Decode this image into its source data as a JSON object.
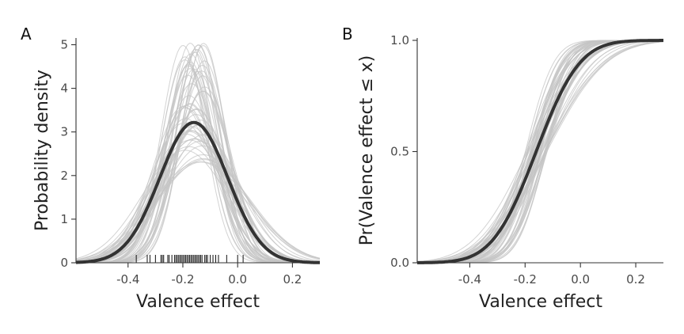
{
  "chart_data": [
    {
      "panel_label": "A",
      "type": "line",
      "title": "",
      "xlabel": "Valence effect",
      "ylabel": "Probability density",
      "xlim": [
        -0.59,
        0.3
      ],
      "ylim": [
        0,
        5.1
      ],
      "xticks": [
        -0.4,
        -0.2,
        0.0,
        0.2
      ],
      "xtick_labels": [
        "-0.4",
        "-0.2",
        "0.0",
        "0.2"
      ],
      "yticks": [
        0,
        1,
        2,
        3,
        4,
        5
      ],
      "ytick_labels": [
        "0",
        "1",
        "2",
        "3",
        "4",
        "5"
      ],
      "mean_curve": {
        "distribution": "normal",
        "mean": -0.16,
        "sd": 0.124,
        "peak_density": 3.22
      },
      "posterior_draws": {
        "count": 60,
        "mean_range": [
          -0.2,
          -0.12
        ],
        "sd_range": [
          0.078,
          0.175
        ],
        "color": "#c4c4c4"
      },
      "rug": [
        -0.37,
        -0.33,
        -0.32,
        -0.3,
        -0.28,
        -0.275,
        -0.27,
        -0.255,
        -0.25,
        -0.24,
        -0.23,
        -0.225,
        -0.22,
        -0.215,
        -0.21,
        -0.205,
        -0.2,
        -0.195,
        -0.19,
        -0.185,
        -0.18,
        -0.175,
        -0.17,
        -0.165,
        -0.16,
        -0.155,
        -0.15,
        -0.145,
        -0.14,
        -0.135,
        -0.13,
        -0.12,
        -0.115,
        -0.11,
        -0.1,
        -0.09,
        -0.08,
        -0.07,
        -0.04,
        0.0,
        0.02
      ],
      "grid": false,
      "legend": "none",
      "colors": {
        "mean": "#333333",
        "draws": "#c4c4c4",
        "rug": "#111111"
      }
    },
    {
      "panel_label": "B",
      "type": "line",
      "title": "",
      "xlabel": "Valence effect",
      "ylabel": "Pr(Valence effect ≤ x)",
      "xlim": [
        -0.59,
        0.3
      ],
      "ylim": [
        0,
        1
      ],
      "xticks": [
        -0.4,
        -0.2,
        0.0,
        0.2
      ],
      "xtick_labels": [
        "-0.4",
        "-0.2",
        "0.0",
        "0.2"
      ],
      "yticks": [
        0,
        0.5,
        1.0
      ],
      "ytick_labels": [
        "0.0",
        "0.5",
        "1.0"
      ],
      "mean_curve": {
        "distribution": "normal_cdf",
        "mean": -0.16,
        "sd": 0.124
      },
      "posterior_draws": {
        "count": 60,
        "mean_range": [
          -0.2,
          -0.12
        ],
        "sd_range": [
          0.078,
          0.175
        ],
        "color": "#c4c4c4"
      },
      "grid": false,
      "legend": "none",
      "colors": {
        "mean": "#333333",
        "draws": "#c4c4c4"
      }
    }
  ]
}
